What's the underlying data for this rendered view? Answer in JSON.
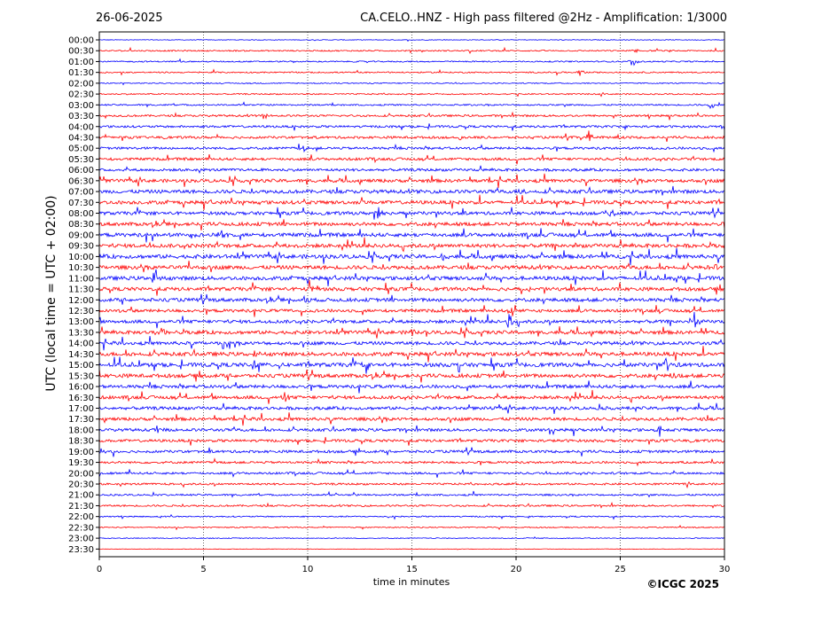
{
  "header": {
    "date": "26-06-2025",
    "title": "CA.CELO..HNZ - High pass filtered @2Hz - Amplification: 1/3000"
  },
  "footer": {
    "copyright": "©ICGC 2025"
  },
  "chart_data": {
    "type": "line",
    "title": "CA.CELO..HNZ - High pass filtered @2Hz - Amplification: 1/3000",
    "xlabel": "time in minutes",
    "ylabel": "UTC (local time = UTC + 02:00)",
    "xlim": [
      0,
      30
    ],
    "x_ticks": [
      "0",
      "5",
      "10",
      "15",
      "20",
      "25",
      "30"
    ],
    "grid": "vertical dotted at each x tick",
    "row_labels": [
      "00:00",
      "00:30",
      "01:00",
      "01:30",
      "02:00",
      "02:30",
      "03:00",
      "03:30",
      "04:00",
      "04:30",
      "05:00",
      "05:30",
      "06:00",
      "06:30",
      "07:00",
      "07:30",
      "08:00",
      "08:30",
      "09:00",
      "09:30",
      "10:00",
      "10:30",
      "11:00",
      "11:30",
      "12:00",
      "12:30",
      "13:00",
      "13:30",
      "14:00",
      "14:30",
      "15:00",
      "15:30",
      "16:00",
      "16:30",
      "17:00",
      "17:30",
      "18:00",
      "18:30",
      "19:00",
      "19:30",
      "20:00",
      "20:30",
      "21:00",
      "21:30",
      "22:00",
      "22:30",
      "23:00",
      "23:30"
    ],
    "trace_colors": [
      "#0000ff",
      "#ff0000"
    ],
    "noise_level": [
      0.15,
      0.3,
      0.3,
      0.3,
      0.25,
      0.3,
      0.35,
      0.45,
      0.5,
      0.55,
      0.55,
      0.6,
      0.6,
      0.75,
      0.8,
      0.8,
      0.75,
      0.8,
      0.85,
      0.85,
      0.9,
      0.85,
      0.85,
      0.8,
      0.8,
      0.7,
      0.75,
      0.8,
      0.75,
      0.85,
      0.9,
      0.85,
      0.75,
      0.75,
      0.7,
      0.7,
      0.65,
      0.6,
      0.6,
      0.5,
      0.5,
      0.45,
      0.4,
      0.4,
      0.3,
      0.25,
      0.2,
      0.1
    ],
    "events": [
      {
        "row": 1,
        "x": 25.7,
        "amp": 1.2
      },
      {
        "row": 2,
        "x": 25.6,
        "amp": 2.5
      },
      {
        "row": 3,
        "x": 23.1,
        "amp": 2.0
      },
      {
        "row": 6,
        "x": 29.4,
        "amp": 2.5
      },
      {
        "row": 7,
        "x": 7.9,
        "amp": 1.5
      },
      {
        "row": 8,
        "x": 30.0,
        "amp": 2.0
      },
      {
        "row": 9,
        "x": 23.5,
        "amp": 3.0
      },
      {
        "row": 9,
        "x": 17.3,
        "amp": 1.5
      },
      {
        "row": 9,
        "x": 24.8,
        "amp": 2.5
      },
      {
        "row": 10,
        "x": 9.8,
        "amp": 1.5
      },
      {
        "row": 14,
        "x": 20.4,
        "amp": 2.5
      },
      {
        "row": 16,
        "x": 13.4,
        "amp": 3.5
      },
      {
        "row": 16,
        "x": 24.6,
        "amp": 3.0
      },
      {
        "row": 18,
        "x": 4.4,
        "amp": 2.5
      },
      {
        "row": 18,
        "x": 5.9,
        "amp": 2.0
      },
      {
        "row": 19,
        "x": 9.3,
        "amp": 1.5
      },
      {
        "row": 20,
        "x": 16.5,
        "amp": 2.5
      },
      {
        "row": 21,
        "x": 29.5,
        "amp": 2.5
      },
      {
        "row": 22,
        "x": 2.6,
        "amp": 3.5
      },
      {
        "row": 22,
        "x": 27.7,
        "amp": 2.0
      },
      {
        "row": 23,
        "x": 10.1,
        "amp": 4.0
      },
      {
        "row": 23,
        "x": 20.6,
        "amp": 2.5
      },
      {
        "row": 24,
        "x": 9.9,
        "amp": 2.5
      },
      {
        "row": 25,
        "x": 19.8,
        "amp": 3.0
      },
      {
        "row": 26,
        "x": 19.7,
        "amp": 5.0
      },
      {
        "row": 26,
        "x": 28.6,
        "amp": 3.0
      },
      {
        "row": 27,
        "x": 2.9,
        "amp": 2.5
      },
      {
        "row": 27,
        "x": 15.1,
        "amp": 2.0
      },
      {
        "row": 28,
        "x": 6.1,
        "amp": 1.5
      },
      {
        "row": 29,
        "x": 7.5,
        "amp": 2.0
      },
      {
        "row": 30,
        "x": 7.4,
        "amp": 3.5
      },
      {
        "row": 30,
        "x": 27.2,
        "amp": 3.5
      },
      {
        "row": 31,
        "x": 27.5,
        "amp": 2.0
      },
      {
        "row": 33,
        "x": 8.9,
        "amp": 2.5
      },
      {
        "row": 36,
        "x": 2.8,
        "amp": 2.0
      },
      {
        "row": 36,
        "x": 26.9,
        "amp": 2.0
      },
      {
        "row": 38,
        "x": 0.1,
        "amp": 2.0
      },
      {
        "row": 40,
        "x": 0.0,
        "amp": 1.5
      }
    ]
  }
}
